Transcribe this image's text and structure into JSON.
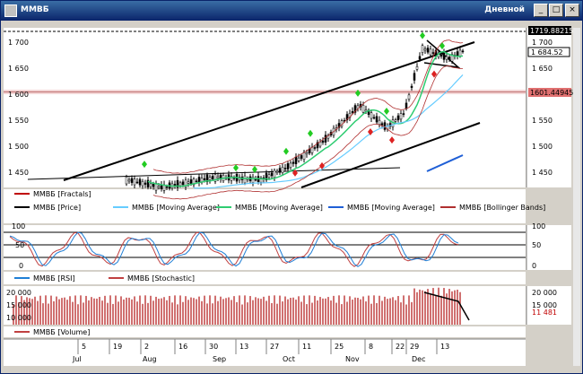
{
  "window": {
    "title": "ММВБ",
    "mode": "Дневной",
    "min": "_",
    "max": "□",
    "close": "×"
  },
  "price_panel": {
    "y_ticks": [
      "1 700",
      "1 650",
      "1 600",
      "1 550",
      "1 500",
      "1 450"
    ],
    "top_value": "1719.88215",
    "last_value": "1 684.52",
    "level_value": "1601.44945"
  },
  "price_legend": [
    {
      "label": "ММВБ [Fractals]",
      "color": "#c00000"
    },
    {
      "label": "ММВБ [Price]",
      "color": "#000000"
    },
    {
      "label": "ММВБ [Moving Average]",
      "color": "#66ccff"
    },
    {
      "label": "ММВБ [Moving Average]",
      "color": "#2ecc71"
    },
    {
      "label": "ММВБ [Moving Average]",
      "color": "#1f5fd6"
    },
    {
      "label": "ММВБ [Bollinger Bands]",
      "color": "#b03030"
    }
  ],
  "osc_panel": {
    "y_ticks": [
      "100",
      "50",
      "0"
    ]
  },
  "osc_legend": [
    {
      "label": "ММВБ [RSI]",
      "color": "#1f7fd6"
    },
    {
      "label": "ММВБ [Stochastic]",
      "color": "#c04040"
    }
  ],
  "vol_panel": {
    "y_ticks": [
      "20 000",
      "15 000",
      "10 000"
    ],
    "last_value": "11 481"
  },
  "vol_legend": [
    {
      "label": "ММВБ [Volume]",
      "color": "#c04040"
    }
  ],
  "x_days": [
    "5",
    "19",
    "2",
    "16",
    "30",
    "13",
    "27",
    "11",
    "25",
    "8",
    "22",
    "29",
    "13"
  ],
  "x_months": [
    "Jul",
    "Aug",
    "Sep",
    "Oct",
    "Nov",
    "Dec"
  ],
  "chart_data": {
    "type": "line",
    "x_months": [
      "Jul",
      "Aug",
      "Sep",
      "Oct",
      "Nov",
      "Dec"
    ],
    "ylim": [
      1420,
      1730
    ],
    "volume_ylim": [
      0,
      25000
    ]
  }
}
